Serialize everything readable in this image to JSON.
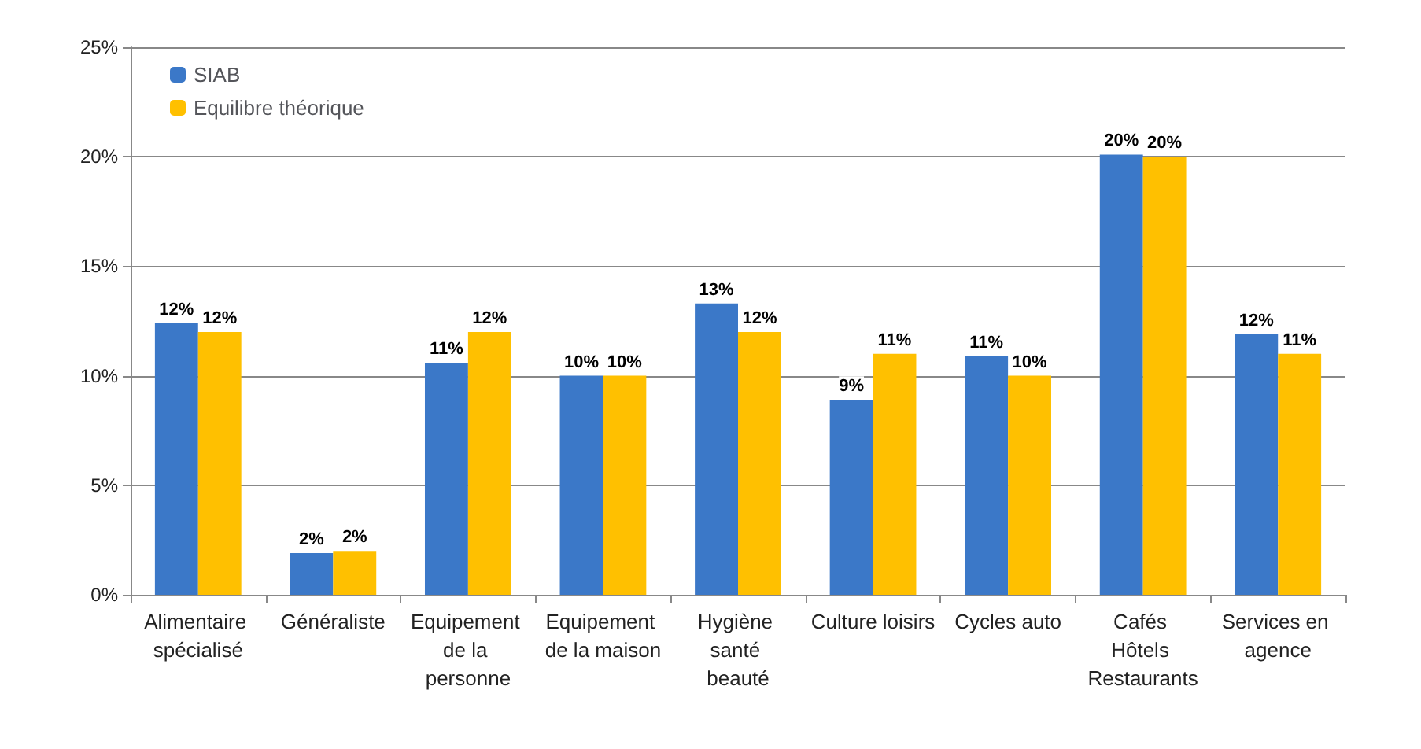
{
  "chart_data": {
    "type": "bar",
    "categories": [
      "Alimentaire spécialisé",
      "Généraliste",
      "Equipement de la personne",
      "Equipement de la maison",
      "Hygiène santé beauté",
      "Culture loisirs",
      "Cycles auto",
      "Cafés Hôtels Restaurants",
      "Services en agence"
    ],
    "series": [
      {
        "name": "SIAB",
        "color": "#3b78c8",
        "values": [
          12.4,
          1.9,
          10.6,
          10.0,
          13.3,
          8.9,
          10.9,
          20.1,
          11.9
        ],
        "value_labels": [
          "12%",
          "2%",
          "11%",
          "10%",
          "13%",
          "9%",
          "11%",
          "20%",
          "12%"
        ]
      },
      {
        "name": "Equilibre théorique",
        "color": "#ffc000",
        "values": [
          12,
          2,
          12,
          10,
          12,
          11,
          10,
          20,
          11
        ],
        "value_labels": [
          "12%",
          "2%",
          "12%",
          "10%",
          "12%",
          "11%",
          "10%",
          "20%",
          "11%"
        ]
      }
    ],
    "ylim": [
      0,
      25
    ],
    "yticks": [
      {
        "value": 0,
        "label": "0%"
      },
      {
        "value": 5,
        "label": "5%"
      },
      {
        "value": 10,
        "label": "10%"
      },
      {
        "value": 15,
        "label": "15%"
      },
      {
        "value": 20,
        "label": "20%"
      },
      {
        "value": 25,
        "label": "25%"
      }
    ],
    "grid": "y",
    "legend": "top left"
  }
}
